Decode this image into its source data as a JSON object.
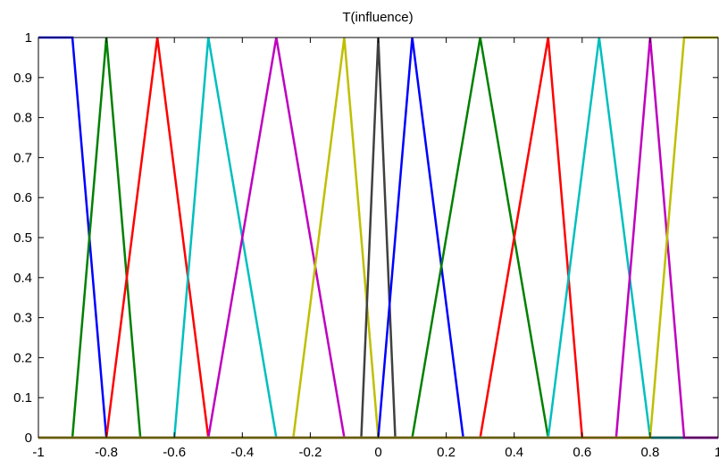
{
  "chart_data": {
    "type": "line",
    "title": "T(influence)",
    "xlabel": "",
    "ylabel": "",
    "xlim": [
      -1,
      1
    ],
    "ylim": [
      0,
      1
    ],
    "xticks": [
      "-1",
      "-0.8",
      "-0.6",
      "-0.4",
      "-0.2",
      "0",
      "0.2",
      "0.4",
      "0.6",
      "0.8",
      "1"
    ],
    "yticks": [
      "0",
      "0.1",
      "0.2",
      "0.3",
      "0.4",
      "0.5",
      "0.6",
      "0.7",
      "0.8",
      "0.9",
      "1"
    ],
    "grid": false,
    "legend": "none",
    "series": [
      {
        "color": "#0000ff",
        "x": [
          -1,
          -0.9,
          -0.8,
          1
        ],
        "y": [
          1,
          1,
          0,
          0
        ]
      },
      {
        "color": "#008000",
        "x": [
          -1,
          -0.9,
          -0.8,
          -0.7,
          1
        ],
        "y": [
          0,
          0,
          1,
          0,
          0
        ]
      },
      {
        "color": "#ff0000",
        "x": [
          -1,
          -0.8,
          -0.65,
          -0.5,
          1
        ],
        "y": [
          0,
          0,
          1,
          0,
          0
        ]
      },
      {
        "color": "#00bfbf",
        "x": [
          -1,
          -0.6,
          -0.5,
          -0.3,
          1
        ],
        "y": [
          0,
          0,
          1,
          0,
          0
        ]
      },
      {
        "color": "#bf00bf",
        "x": [
          -1,
          -0.5,
          -0.3,
          -0.1,
          1
        ],
        "y": [
          0,
          0,
          1,
          0,
          0
        ]
      },
      {
        "color": "#bfbf00",
        "x": [
          -1,
          -0.25,
          -0.1,
          0,
          1
        ],
        "y": [
          0,
          0,
          1,
          0,
          0
        ]
      },
      {
        "color": "#404040",
        "x": [
          -1,
          -0.05,
          0,
          0.05,
          1
        ],
        "y": [
          0,
          0,
          1,
          0,
          0
        ]
      },
      {
        "color": "#0000ff",
        "x": [
          -1,
          0,
          0.1,
          0.25,
          1
        ],
        "y": [
          0,
          0,
          1,
          0,
          0
        ]
      },
      {
        "color": "#008000",
        "x": [
          -1,
          0.1,
          0.3,
          0.5,
          1
        ],
        "y": [
          0,
          0,
          1,
          0,
          0
        ]
      },
      {
        "color": "#ff0000",
        "x": [
          -1,
          0.3,
          0.5,
          0.6,
          1
        ],
        "y": [
          0,
          0,
          1,
          0,
          0
        ]
      },
      {
        "color": "#00bfbf",
        "x": [
          -1,
          0.5,
          0.65,
          0.8,
          1
        ],
        "y": [
          0,
          0,
          1,
          0,
          0
        ]
      },
      {
        "color": "#bf00bf",
        "x": [
          -1,
          0.7,
          0.8,
          0.9,
          1
        ],
        "y": [
          0,
          0,
          1,
          0,
          0
        ]
      },
      {
        "color": "#bfbf00",
        "x": [
          -1,
          0.8,
          0.9,
          1
        ],
        "y": [
          0,
          0,
          1,
          1
        ]
      }
    ]
  }
}
